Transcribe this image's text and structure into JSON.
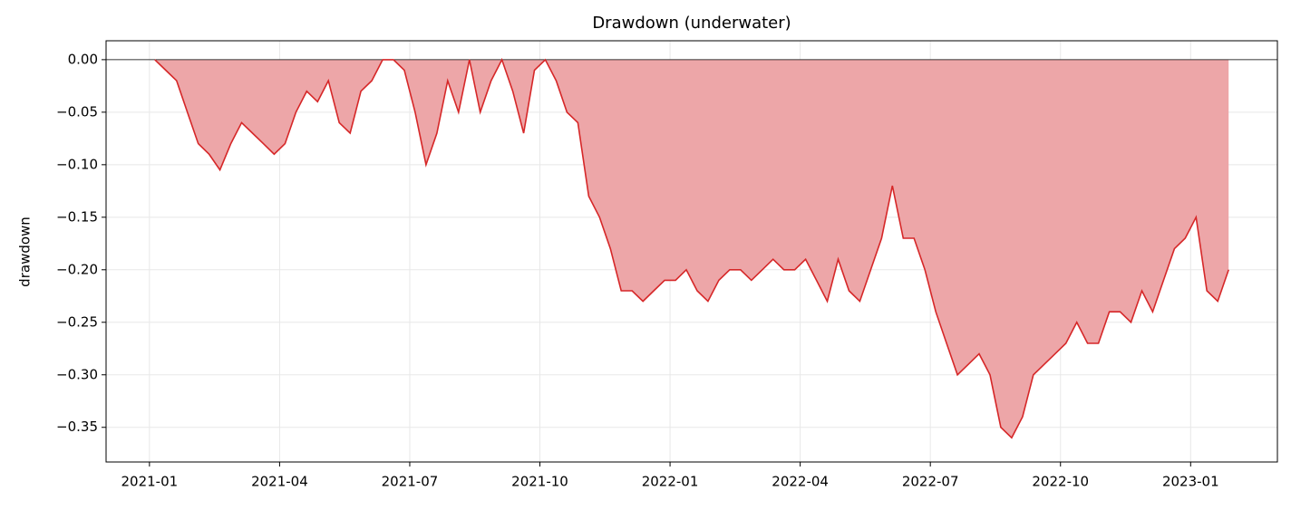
{
  "chart_data": {
    "type": "area",
    "title": "Drawdown (underwater)",
    "ylabel": "drawdown",
    "x": [
      "2021-01",
      "2021-01",
      "2021-01",
      "2021-01",
      "2021-02",
      "2021-02",
      "2021-02",
      "2021-02",
      "2021-03",
      "2021-03",
      "2021-03",
      "2021-03",
      "2021-04",
      "2021-04",
      "2021-04",
      "2021-04",
      "2021-05",
      "2021-05",
      "2021-05",
      "2021-05",
      "2021-06",
      "2021-06",
      "2021-06",
      "2021-06",
      "2021-07",
      "2021-07",
      "2021-07",
      "2021-07",
      "2021-08",
      "2021-08",
      "2021-08",
      "2021-08",
      "2021-09",
      "2021-09",
      "2021-09",
      "2021-09",
      "2021-10",
      "2021-10",
      "2021-10",
      "2021-10",
      "2021-11",
      "2021-11",
      "2021-11",
      "2021-11",
      "2021-12",
      "2021-12",
      "2021-12",
      "2021-12",
      "2022-01",
      "2022-01",
      "2022-01",
      "2022-01",
      "2022-02",
      "2022-02",
      "2022-02",
      "2022-02",
      "2022-03",
      "2022-03",
      "2022-03",
      "2022-03",
      "2022-04",
      "2022-04",
      "2022-04",
      "2022-04",
      "2022-05",
      "2022-05",
      "2022-05",
      "2022-05",
      "2022-06",
      "2022-06",
      "2022-06",
      "2022-06",
      "2022-07",
      "2022-07",
      "2022-07",
      "2022-07",
      "2022-08",
      "2022-08",
      "2022-08",
      "2022-08",
      "2022-09",
      "2022-09",
      "2022-09",
      "2022-09",
      "2022-10",
      "2022-10",
      "2022-10",
      "2022-10",
      "2022-11",
      "2022-11",
      "2022-11",
      "2022-11",
      "2022-12",
      "2022-12",
      "2022-12",
      "2022-12",
      "2023-01",
      "2023-01",
      "2023-01",
      "2023-01"
    ],
    "values": [
      0,
      -0.01,
      -0.02,
      -0.05,
      -0.08,
      -0.09,
      -0.105,
      -0.08,
      -0.06,
      -0.07,
      -0.08,
      -0.09,
      -0.08,
      -0.05,
      -0.03,
      -0.04,
      -0.02,
      -0.06,
      -0.07,
      -0.03,
      -0.02,
      0,
      0,
      -0.01,
      -0.05,
      -0.1,
      -0.07,
      -0.02,
      -0.05,
      0,
      -0.05,
      -0.02,
      0,
      -0.03,
      -0.07,
      -0.01,
      0,
      -0.02,
      -0.05,
      -0.06,
      -0.13,
      -0.15,
      -0.18,
      -0.22,
      -0.22,
      -0.23,
      -0.22,
      -0.21,
      -0.21,
      -0.2,
      -0.22,
      -0.23,
      -0.21,
      -0.2,
      -0.2,
      -0.21,
      -0.2,
      -0.19,
      -0.2,
      -0.2,
      -0.19,
      -0.21,
      -0.23,
      -0.19,
      -0.22,
      -0.23,
      -0.2,
      -0.17,
      -0.12,
      -0.17,
      -0.17,
      -0.2,
      -0.24,
      -0.27,
      -0.3,
      -0.29,
      -0.28,
      -0.3,
      -0.35,
      -0.36,
      -0.34,
      -0.3,
      -0.29,
      -0.28,
      -0.27,
      -0.25,
      -0.27,
      -0.27,
      -0.24,
      -0.24,
      -0.25,
      -0.22,
      -0.24,
      -0.21,
      -0.18,
      -0.17,
      -0.15,
      -0.22,
      -0.23,
      -0.2
    ],
    "color": "#d62728",
    "fill_color": "#eda6a8",
    "xlim": [
      "2020-12",
      "2023-03"
    ],
    "xticks": [
      "2021-01",
      "2021-04",
      "2021-07",
      "2021-10",
      "2022-01",
      "2022-04",
      "2022-07",
      "2022-10",
      "2023-01"
    ],
    "ylim": [
      -0.383,
      0.018
    ],
    "yticks": [
      {
        "value": 0,
        "label": "0.00"
      },
      {
        "value": -0.05,
        "label": "−0.05"
      },
      {
        "value": -0.1,
        "label": "−0.10"
      },
      {
        "value": -0.15,
        "label": "−0.15"
      },
      {
        "value": -0.2,
        "label": "−0.20"
      },
      {
        "value": -0.25,
        "label": "−0.25"
      },
      {
        "value": -0.3,
        "label": "−0.30"
      },
      {
        "value": -0.35,
        "label": "−0.35"
      }
    ],
    "grid": true
  }
}
